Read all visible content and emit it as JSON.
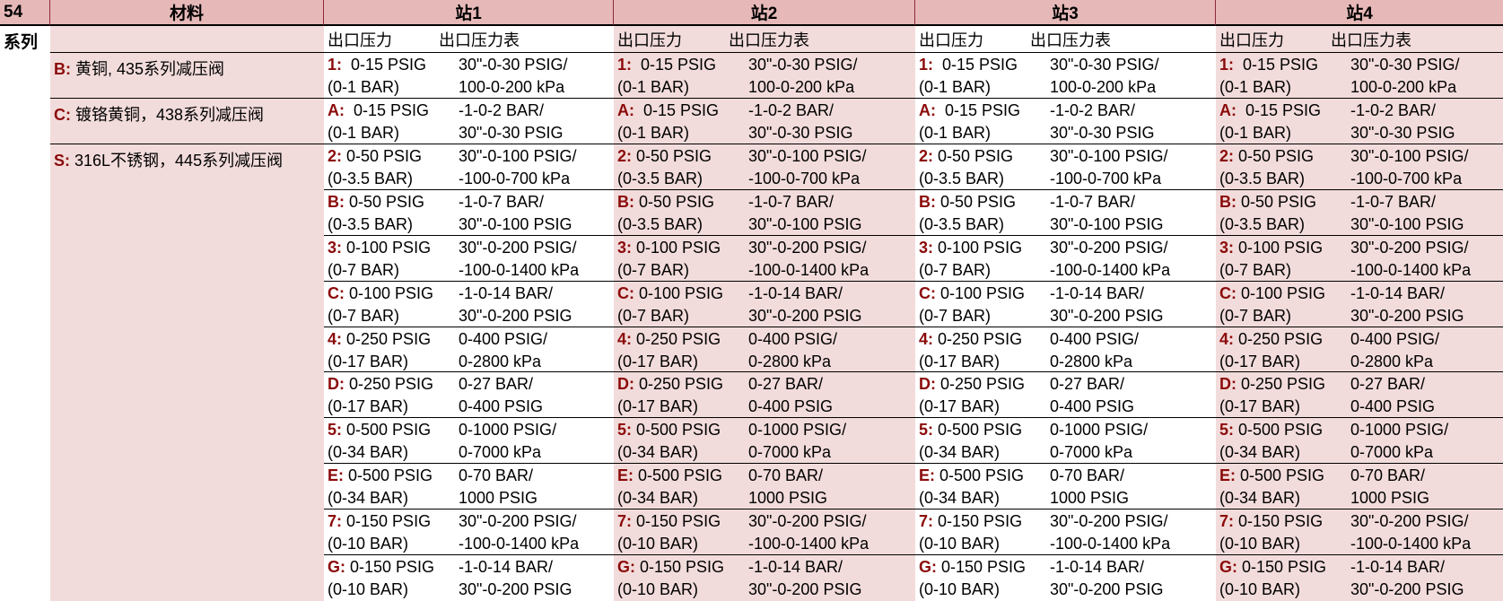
{
  "header": {
    "series_no": "54",
    "material": "材料",
    "stations": [
      "站1",
      "站2",
      "站3",
      "站4"
    ]
  },
  "subheader": {
    "series_label": "系列",
    "outlet_pressure": "出口压力",
    "outlet_gauge": "出口压力表"
  },
  "materials": [
    {
      "code": "B:",
      "name": " 黄铜, 435系列减压阀"
    },
    {
      "code": "C:",
      "name": " 镀铬黄铜，438系列减压阀"
    },
    {
      "code": "S:",
      "name": " 316L不锈钢，445系列减压阀"
    }
  ],
  "rows": [
    {
      "code": "1:",
      "psig": "  0-15 PSIG",
      "bar": "(0-1 BAR)",
      "gauge1": "30\"-0-30 PSIG/",
      "gauge2": "100-0-200 kPa"
    },
    {
      "code": "A:",
      "psig": "  0-15 PSIG",
      "bar": "(0-1 BAR)",
      "gauge1": "-1-0-2 BAR/",
      "gauge2": "30\"-0-30 PSIG"
    },
    {
      "code": "2:",
      "psig": " 0-50 PSIG",
      "bar": "(0-3.5 BAR)",
      "gauge1": "30\"-0-100 PSIG/",
      "gauge2": "-100-0-700 kPa"
    },
    {
      "code": "B:",
      "psig": " 0-50 PSIG",
      "bar": "(0-3.5 BAR)",
      "gauge1": "-1-0-7 BAR/",
      "gauge2": "30\"-0-100 PSIG"
    },
    {
      "code": "3:",
      "psig": " 0-100 PSIG",
      "bar": "(0-7 BAR)",
      "gauge1": "30\"-0-200 PSIG/",
      "gauge2": "-100-0-1400 kPa"
    },
    {
      "code": "C:",
      "psig": " 0-100 PSIG",
      "bar": "(0-7 BAR)",
      "gauge1": "-1-0-14 BAR/",
      "gauge2": "30\"-0-200 PSIG"
    },
    {
      "code": "4:",
      "psig": " 0-250 PSIG",
      "bar": "(0-17 BAR)",
      "gauge1": "0-400 PSIG/",
      "gauge2": "0-2800 kPa"
    },
    {
      "code": "D:",
      "psig": " 0-250 PSIG",
      "bar": "(0-17 BAR)",
      "gauge1": "0-27 BAR/",
      "gauge2": "0-400 PSIG"
    },
    {
      "code": "5:",
      "psig": " 0-500 PSIG",
      "bar": "(0-34 BAR)",
      "gauge1": "0-1000 PSIG/",
      "gauge2": "0-7000 kPa"
    },
    {
      "code": "E:",
      "psig": " 0-500 PSIG",
      "bar": "(0-34 BAR)",
      "gauge1": "0-70 BAR/",
      "gauge2": "1000 PSIG"
    },
    {
      "code": "7:",
      "psig": " 0-150 PSIG",
      "bar": "(0-10 BAR)",
      "gauge1": "30\"-0-200 PSIG/",
      "gauge2": "-100-0-1400 kPa"
    },
    {
      "code": "G:",
      "psig": " 0-150 PSIG",
      "bar": "(0-10 BAR)",
      "gauge1": "-1-0-14 BAR/",
      "gauge2": "30\"-0-200 PSIG"
    }
  ],
  "colors": {
    "header_bg": "#e6b9b8",
    "pink_bg": "#f2dcdb",
    "code_text": "#8b0a0a"
  }
}
